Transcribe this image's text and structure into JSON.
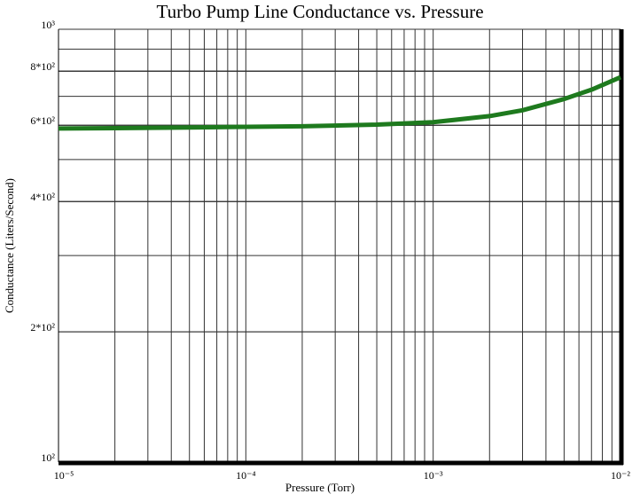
{
  "chart_data": {
    "type": "line",
    "title": "Turbo Pump Line Conductance vs. Pressure",
    "xlabel": "Pressure  (Torr)",
    "ylabel": "Conductance  (Liters/Second)",
    "x": [
      1e-05,
      2e-05,
      5e-05,
      0.0001,
      0.0002,
      0.0005,
      0.001,
      0.002,
      0.003,
      0.005,
      0.007,
      0.01
    ],
    "series": [
      {
        "color": "#1e7a1e",
        "values": [
          590,
          591,
          593,
          595,
          597,
          602,
          610,
          630,
          650,
          690,
          725,
          775
        ]
      }
    ],
    "xlog": true,
    "ylog": true,
    "grid": true,
    "xlim": [
      1e-05,
      0.01
    ],
    "xticks": [
      {
        "value": 1e-05,
        "label": "10⁻⁵"
      },
      {
        "value": 0.0001,
        "label": "10⁻⁴"
      },
      {
        "value": 0.001,
        "label": "10⁻³"
      },
      {
        "value": 0.01,
        "label": "10⁻²"
      }
    ],
    "ylim": [
      100,
      1000
    ],
    "yticks": [
      {
        "value": 100,
        "label": "10²"
      },
      {
        "value": 200,
        "label": "2*10²"
      },
      {
        "value": 400,
        "label": "4*10²"
      },
      {
        "value": 600,
        "label": "6*10²"
      },
      {
        "value": 800,
        "label": "8*10²"
      },
      {
        "value": 1000,
        "label": "10³"
      }
    ]
  }
}
